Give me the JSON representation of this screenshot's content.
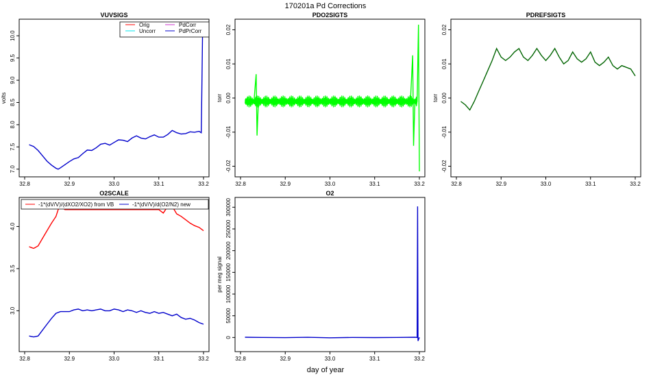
{
  "figure": {
    "title": "170201a   Pd Corrections",
    "xlabel": "day of year"
  },
  "chart_data": [
    {
      "id": "vuvsigs",
      "type": "line",
      "title": "VUVSIGS",
      "ylabel": "volts",
      "xlim": [
        32.8,
        33.2
      ],
      "ylim": [
        6.95,
        10.25
      ],
      "xticks": [
        32.8,
        32.9,
        33.0,
        33.1,
        33.2
      ],
      "xtick_labels": [
        "32.8",
        "32.9",
        "33.0",
        "33.1",
        "33.2"
      ],
      "yticks": [
        7.0,
        7.5,
        8.0,
        8.5,
        9.0,
        9.5,
        10.0
      ],
      "ytick_labels": [
        "7.0",
        "7.5",
        "8.0",
        "8.5",
        "9.0",
        "9.5",
        "10.0"
      ],
      "legend": {
        "position": "top-right",
        "entries": [
          "Orig",
          "Uncorr",
          "PdCorr",
          "PdPrCorr"
        ]
      },
      "series": [
        {
          "name": "Orig",
          "color": "#ff0000",
          "x": [],
          "y": []
        },
        {
          "name": "Uncorr",
          "color": "#00e5ee",
          "x": [],
          "y": []
        },
        {
          "name": "PdCorr",
          "color": "#cc33cc",
          "x": [],
          "y": []
        },
        {
          "name": "PdPrCorr",
          "color": "#0000cc",
          "x": [
            32.81,
            32.82,
            32.83,
            32.84,
            32.85,
            32.86,
            32.87,
            32.875,
            32.88,
            32.89,
            32.9,
            32.91,
            32.92,
            32.93,
            32.94,
            32.95,
            32.96,
            32.97,
            32.98,
            32.99,
            33.0,
            33.01,
            33.02,
            33.03,
            33.04,
            33.05,
            33.06,
            33.07,
            33.08,
            33.09,
            33.1,
            33.11,
            33.12,
            33.13,
            33.14,
            33.15,
            33.16,
            33.17,
            33.18,
            33.19,
            33.195,
            33.196,
            33.198
          ],
          "y": [
            7.55,
            7.51,
            7.42,
            7.3,
            7.18,
            7.09,
            7.02,
            7.0,
            7.03,
            7.1,
            7.17,
            7.23,
            7.26,
            7.35,
            7.43,
            7.42,
            7.48,
            7.56,
            7.58,
            7.54,
            7.6,
            7.66,
            7.65,
            7.62,
            7.7,
            7.75,
            7.7,
            7.68,
            7.73,
            7.77,
            7.72,
            7.72,
            7.78,
            7.87,
            7.82,
            7.79,
            7.8,
            7.84,
            7.83,
            7.85,
            7.82,
            8.6,
            10.2
          ]
        }
      ]
    },
    {
      "id": "pdo2sigts",
      "type": "line",
      "title": "PDO2SIGTS",
      "ylabel": "torr",
      "xlim": [
        32.8,
        33.2
      ],
      "ylim": [
        -0.0215,
        0.0215
      ],
      "xticks": [
        32.8,
        32.9,
        33.0,
        33.1,
        33.2
      ],
      "xtick_labels": [
        "32.8",
        "32.9",
        "33.0",
        "33.1",
        "33.2"
      ],
      "yticks": [
        -0.02,
        -0.01,
        0.0,
        0.01,
        0.02
      ],
      "ytick_labels": [
        "-0.02",
        "-0.01",
        "0.00",
        "0.01",
        "0.02"
      ],
      "series": [
        {
          "name": "PDO2SIGTS",
          "color": "#00ff00",
          "x": [
            32.81,
            32.83,
            32.835,
            32.837,
            32.84,
            32.86,
            32.9,
            32.95,
            33.0,
            33.05,
            33.1,
            33.15,
            33.18,
            33.185,
            33.187,
            33.19,
            33.195,
            33.198,
            33.2
          ],
          "y": [
            -0.001,
            -0.001,
            0.007,
            -0.011,
            -0.001,
            -0.001,
            -0.001,
            -0.001,
            -0.001,
            -0.001,
            -0.001,
            -0.001,
            -0.001,
            0.0125,
            -0.014,
            -0.001,
            -0.001,
            0.0215,
            -0.0215
          ]
        }
      ]
    },
    {
      "id": "pdrefsigts",
      "type": "line",
      "title": "PDREFSIGTS",
      "ylabel": "torr",
      "xlim": [
        32.8,
        33.2
      ],
      "ylim": [
        -0.0215,
        0.0215
      ],
      "xticks": [
        32.8,
        32.9,
        33.0,
        33.1,
        33.2
      ],
      "xtick_labels": [
        "32.8",
        "32.9",
        "33.0",
        "33.1",
        "33.2"
      ],
      "yticks": [
        -0.02,
        -0.01,
        0.0,
        0.01,
        0.02
      ],
      "ytick_labels": [
        "-0.02",
        "-0.01",
        "0.00",
        "0.01",
        "0.02"
      ],
      "series": [
        {
          "name": "PDREFSIGTS",
          "color": "#006400",
          "x": [
            32.81,
            32.82,
            32.83,
            32.84,
            32.85,
            32.86,
            32.87,
            32.88,
            32.89,
            32.9,
            32.91,
            32.92,
            32.93,
            32.94,
            32.95,
            32.96,
            32.97,
            32.98,
            32.99,
            33.0,
            33.01,
            33.02,
            33.03,
            33.04,
            33.05,
            33.06,
            33.07,
            33.08,
            33.09,
            33.1,
            33.11,
            33.12,
            33.13,
            33.14,
            33.15,
            33.16,
            33.17,
            33.18,
            33.19,
            33.2
          ],
          "y": [
            -0.001,
            -0.002,
            -0.0035,
            -0.001,
            0.002,
            0.005,
            0.008,
            0.011,
            0.0145,
            0.012,
            0.011,
            0.012,
            0.0135,
            0.0145,
            0.012,
            0.011,
            0.0125,
            0.0145,
            0.0125,
            0.011,
            0.0125,
            0.0145,
            0.012,
            0.01,
            0.011,
            0.0135,
            0.0115,
            0.0105,
            0.0115,
            0.0135,
            0.0105,
            0.0095,
            0.0105,
            0.012,
            0.0095,
            0.0085,
            0.0095,
            0.009,
            0.0085,
            0.0065
          ]
        }
      ]
    },
    {
      "id": "o2scale",
      "type": "line",
      "title": "O2SCALE",
      "ylabel": "",
      "xlim": [
        32.8,
        33.2
      ],
      "ylim": [
        2.58,
        4.28
      ],
      "xticks": [
        32.8,
        32.9,
        33.0,
        33.1,
        33.2
      ],
      "xtick_labels": [
        "32.8",
        "32.9",
        "33.0",
        "33.1",
        "33.2"
      ],
      "yticks": [
        3.0,
        3.5,
        4.0
      ],
      "ytick_labels": [
        "3.0",
        "3.5",
        "4.0"
      ],
      "legend": {
        "position": "top",
        "entries": [
          "-1*(dV/V)/(dXO2/XO2) from VB",
          "-1*(dV/V)/d(O2/N2) new"
        ]
      },
      "series": [
        {
          "name": "-1*(dV/V)/(dXO2/XO2) from VB",
          "color": "#ff0000",
          "x": [
            32.81,
            32.815,
            32.82,
            32.83,
            32.84,
            32.85,
            32.86,
            32.87,
            32.875,
            32.88,
            32.89,
            32.9,
            32.95,
            33.0,
            33.05,
            33.1,
            33.11,
            33.12,
            33.13,
            33.14,
            33.15,
            33.16,
            33.17,
            33.18,
            33.19,
            33.2
          ],
          "y": [
            3.76,
            3.75,
            3.74,
            3.77,
            3.86,
            3.95,
            4.04,
            4.12,
            4.2,
            4.24,
            4.2,
            4.2,
            4.2,
            4.2,
            4.2,
            4.2,
            4.16,
            4.24,
            4.24,
            4.15,
            4.12,
            4.08,
            4.04,
            4.01,
            3.99,
            3.95
          ]
        },
        {
          "name": "-1*(dV/V)/d(O2/N2) new",
          "color": "#0000cc",
          "x": [
            32.81,
            32.82,
            32.83,
            32.84,
            32.85,
            32.86,
            32.87,
            32.88,
            32.89,
            32.9,
            32.91,
            32.92,
            32.93,
            32.94,
            32.95,
            32.96,
            32.97,
            32.98,
            32.99,
            33.0,
            33.01,
            33.02,
            33.03,
            33.04,
            33.05,
            33.06,
            33.07,
            33.08,
            33.09,
            33.1,
            33.11,
            33.12,
            33.13,
            33.14,
            33.15,
            33.16,
            33.17,
            33.18,
            33.19,
            33.2
          ],
          "y": [
            2.7,
            2.69,
            2.7,
            2.77,
            2.84,
            2.91,
            2.97,
            2.99,
            2.99,
            2.99,
            3.01,
            3.02,
            3.0,
            3.01,
            3.0,
            3.01,
            3.02,
            3.0,
            3.0,
            3.02,
            3.01,
            2.99,
            3.01,
            3.0,
            2.98,
            3.0,
            2.98,
            2.97,
            2.99,
            2.97,
            2.98,
            2.96,
            2.94,
            2.96,
            2.92,
            2.9,
            2.91,
            2.89,
            2.86,
            2.84
          ]
        }
      ]
    },
    {
      "id": "o2",
      "type": "line",
      "title": "O2",
      "ylabel": "per meg signal",
      "xlim": [
        32.8,
        33.2
      ],
      "ylim": [
        -20000,
        310000
      ],
      "xticks": [
        32.8,
        32.9,
        33.0,
        33.1,
        33.2
      ],
      "xtick_labels": [
        "32.8",
        "32.9",
        "33.0",
        "33.1",
        "33.2"
      ],
      "yticks": [
        0,
        50000,
        100000,
        150000,
        200000,
        250000,
        300000
      ],
      "ytick_labels": [
        "0",
        "50000",
        "100000",
        "150000",
        "200000",
        "250000",
        "300000"
      ],
      "series": [
        {
          "name": "O2",
          "color": "#0000cc",
          "x": [
            32.81,
            32.85,
            32.9,
            32.95,
            33.0,
            33.05,
            33.1,
            33.15,
            33.19,
            33.195,
            33.196,
            33.197,
            33.2
          ],
          "y": [
            500,
            0,
            -500,
            300,
            -700,
            0,
            -300,
            0,
            500,
            0,
            302000,
            -8000,
            0
          ]
        }
      ]
    }
  ]
}
